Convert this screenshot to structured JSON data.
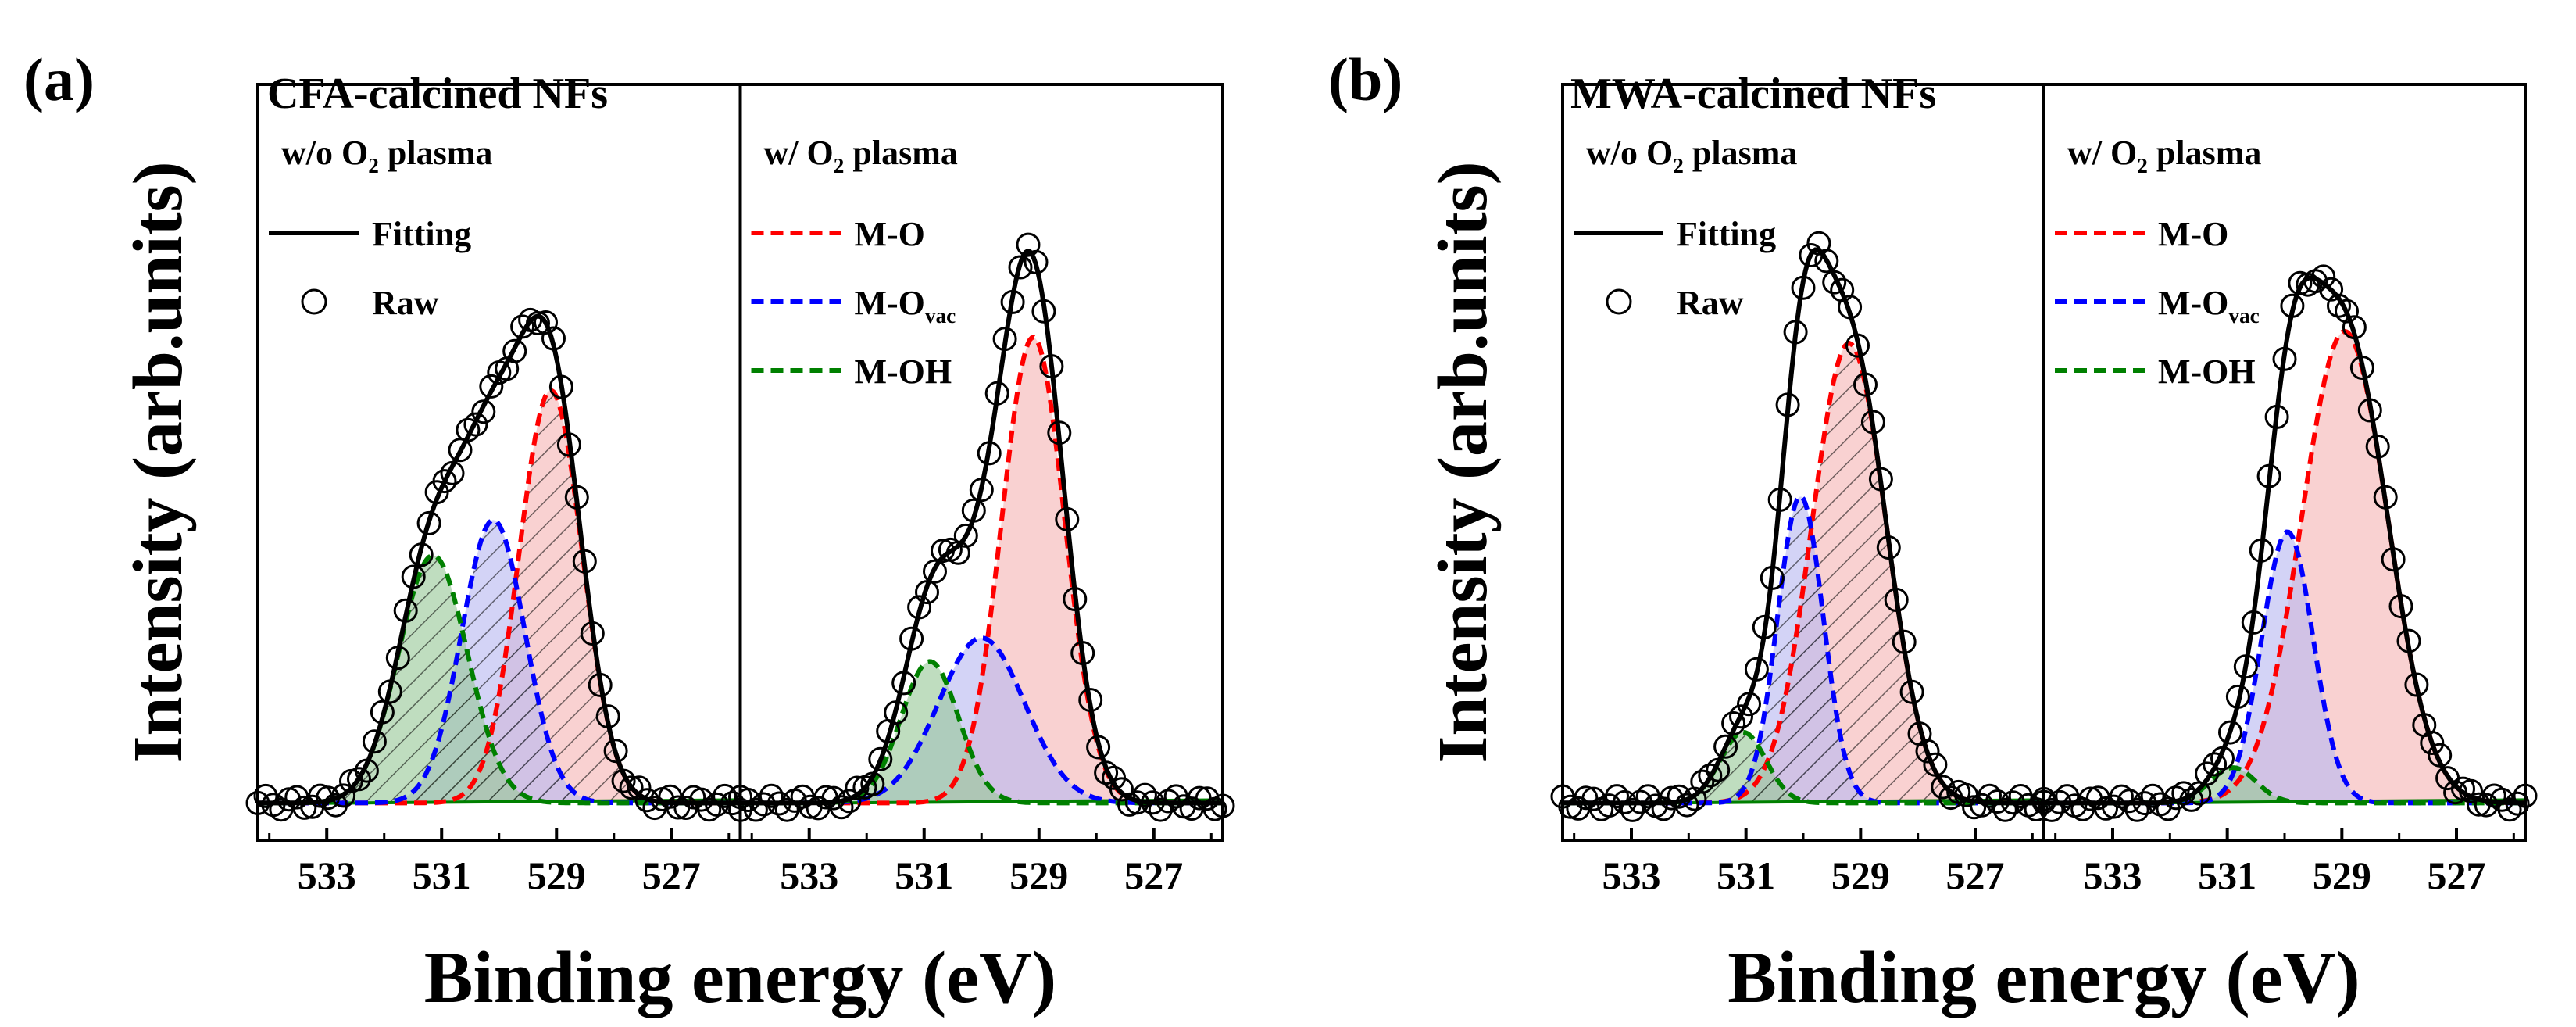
{
  "figure": {
    "panel_a_label": "(a)",
    "panel_b_label": "(b)",
    "ylabel": "Intensity (arb.units)",
    "xlabel": "Binding energy (eV)"
  },
  "colors": {
    "fitting": "#000000",
    "mo": "#ff0000",
    "movac": "#0000ff",
    "moh": "#008000",
    "mo_fill": "#f6b5b5",
    "movac_fill": "#b8b8f0",
    "moh_fill": "#98c898"
  },
  "chart_data": [
    {
      "type": "line",
      "panel": "a",
      "title": "CFA-calcined NFs",
      "xlabel": "Binding energy (eV)",
      "ylabel": "Intensity (arb.units)",
      "xlim": [
        534.2,
        525.8
      ],
      "xticks": [
        533,
        531,
        529,
        527
      ],
      "subpanels": [
        {
          "label_pre": "w/o O",
          "label_sub": "2",
          "label_post": " plasma",
          "hatched": true,
          "baseline": 0.03,
          "peaks": [
            {
              "name": "M-O",
              "center": 529.1,
              "amplitude": 0.7,
              "sigma": 0.55
            },
            {
              "name": "M-O",
              "sub": "vac",
              "center": 530.1,
              "amplitude": 0.48,
              "sigma": 0.55
            },
            {
              "name": "M-OH",
              "center": 531.15,
              "amplitude": 0.42,
              "sigma": 0.6
            }
          ]
        },
        {
          "label_pre": "w/ O",
          "label_sub": "2",
          "label_post": " plasma",
          "hatched": false,
          "baseline": 0.03,
          "peaks": [
            {
              "name": "M-O",
              "center": 529.1,
              "amplitude": 0.79,
              "sigma": 0.55
            },
            {
              "name": "M-O",
              "sub": "vac",
              "center": 530.0,
              "amplitude": 0.28,
              "sigma": 0.75
            },
            {
              "name": "M-OH",
              "center": 530.9,
              "amplitude": 0.24,
              "sigma": 0.5
            }
          ]
        }
      ],
      "legend": [
        {
          "label": "Fitting",
          "style": "solid"
        },
        {
          "label": "Raw",
          "style": "circle"
        },
        {
          "label": "M-O",
          "style": "dashed-red"
        },
        {
          "label": "M-O",
          "sub": "vac",
          "style": "dashed-blue"
        },
        {
          "label": "M-OH",
          "style": "dashed-green"
        }
      ]
    },
    {
      "type": "line",
      "panel": "b",
      "title": "MWA-calcined NFs",
      "xlabel": "Binding energy (eV)",
      "ylabel": "Intensity (arb.units)",
      "xlim": [
        534.2,
        525.8
      ],
      "xticks": [
        533,
        531,
        529,
        527
      ],
      "subpanels": [
        {
          "label_pre": "w/o O",
          "label_sub": "2",
          "label_post": " plasma",
          "hatched": true,
          "baseline": 0.03,
          "peaks": [
            {
              "name": "M-O",
              "center": 529.2,
              "amplitude": 0.78,
              "sigma": 0.65
            },
            {
              "name": "M-O",
              "sub": "vac",
              "center": 530.05,
              "amplitude": 0.52,
              "sigma": 0.4
            },
            {
              "name": "M-OH",
              "center": 531.05,
              "amplitude": 0.12,
              "sigma": 0.4
            }
          ]
        },
        {
          "label_pre": "w/ O",
          "label_sub": "2",
          "label_post": " plasma",
          "hatched": false,
          "baseline": 0.03,
          "peaks": [
            {
              "name": "M-O",
              "center": 528.95,
              "amplitude": 0.8,
              "sigma": 0.75
            },
            {
              "name": "M-O",
              "sub": "vac",
              "center": 529.95,
              "amplitude": 0.46,
              "sigma": 0.45
            },
            {
              "name": "M-OH",
              "center": 530.9,
              "amplitude": 0.06,
              "sigma": 0.4
            }
          ]
        }
      ],
      "legend": [
        {
          "label": "Fitting",
          "style": "solid"
        },
        {
          "label": "Raw",
          "style": "circle"
        },
        {
          "label": "M-O",
          "style": "dashed-red"
        },
        {
          "label": "M-O",
          "sub": "vac",
          "style": "dashed-blue"
        },
        {
          "label": "M-OH",
          "style": "dashed-green"
        }
      ]
    }
  ]
}
